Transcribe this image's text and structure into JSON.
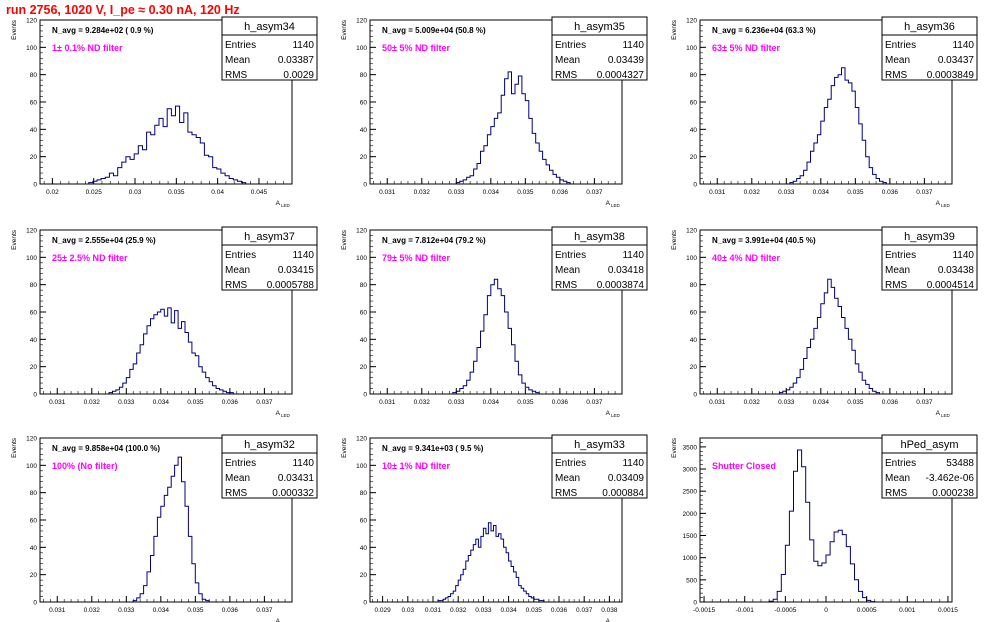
{
  "page_title": "run 2756,  1020 V, I_pe ≈ 0.30 nA, 120 Hz",
  "colors": {
    "title": "#ff0000",
    "histogram": "#000080",
    "note": "#ff00ff",
    "axes": "#000000"
  },
  "chart_data": [
    {
      "type": "histogram",
      "name": "h_asym34",
      "header": "N_avg = 9.284e+02 ( 0.9 %)",
      "note": "1± 0.1% ND filter",
      "stats": [
        [
          "Entries",
          "1140"
        ],
        [
          "Mean",
          "0.03387"
        ],
        [
          "RMS",
          "0.0029"
        ]
      ],
      "ylabel": "Events",
      "xlabel": "A",
      "xlabel_sub": "LED",
      "xlim": [
        0.0185,
        0.049
      ],
      "ylim": [
        0,
        120
      ],
      "xticks": [
        0.02,
        0.025,
        0.03,
        0.035,
        0.04,
        0.045
      ],
      "xtick_labels": [
        "0.02",
        "0.025",
        "0.03",
        "0.035",
        "0.04",
        "0.045"
      ],
      "yticks": [
        0,
        20,
        40,
        60,
        80,
        100,
        120
      ],
      "bins": {
        "start": 0.0244,
        "width": 0.0005,
        "counts": [
          1,
          2,
          3,
          4,
          5,
          8,
          6,
          12,
          16,
          20,
          18,
          22,
          28,
          25,
          38,
          36,
          43,
          48,
          42,
          55,
          50,
          57,
          45,
          52,
          38,
          36,
          34,
          30,
          21,
          20,
          12,
          11,
          8,
          6,
          4,
          3,
          2,
          1
        ]
      }
    },
    {
      "type": "histogram",
      "name": "h_asym35",
      "header": "N_avg = 5.009e+04 (50.8 %)",
      "note": "50± 5% ND filter",
      "stats": [
        [
          "Entries",
          "1140"
        ],
        [
          "Mean",
          "0.03439"
        ],
        [
          "RMS",
          "0.0004327"
        ]
      ],
      "ylabel": "Events",
      "xlabel": "A",
      "xlabel_sub": "LED",
      "xlim": [
        0.0305,
        0.0378
      ],
      "ylim": [
        0,
        120
      ],
      "xticks": [
        0.031,
        0.032,
        0.033,
        0.034,
        0.035,
        0.036,
        0.037
      ],
      "xtick_labels": [
        "0.031",
        "0.032",
        "0.033",
        "0.034",
        "0.035",
        "0.036",
        "0.037"
      ],
      "yticks": [
        0,
        20,
        40,
        60,
        80,
        100,
        120
      ],
      "bins": {
        "start": 0.033,
        "width": 0.0001,
        "counts": [
          1,
          2,
          3,
          5,
          6,
          11,
          15,
          24,
          28,
          36,
          42,
          48,
          52,
          65,
          77,
          82,
          66,
          73,
          79,
          66,
          61,
          48,
          37,
          30,
          24,
          18,
          14,
          10,
          7,
          5,
          3,
          2,
          1
        ]
      }
    },
    {
      "type": "histogram",
      "name": "h_asym36",
      "header": "N_avg = 6.236e+04 (63.3 %)",
      "note": "63± 5% ND filter",
      "stats": [
        [
          "Entries",
          "1140"
        ],
        [
          "Mean",
          "0.03437"
        ],
        [
          "RMS",
          "0.0003849"
        ]
      ],
      "ylabel": "Events",
      "xlabel": "A",
      "xlabel_sub": "LED",
      "xlim": [
        0.0305,
        0.0378
      ],
      "ylim": [
        0,
        120
      ],
      "xticks": [
        0.031,
        0.032,
        0.033,
        0.034,
        0.035,
        0.036,
        0.037
      ],
      "xtick_labels": [
        "0.031",
        "0.032",
        "0.033",
        "0.034",
        "0.035",
        "0.036",
        "0.037"
      ],
      "yticks": [
        0,
        20,
        40,
        60,
        80,
        100,
        120
      ],
      "bins": {
        "start": 0.0331,
        "width": 0.0001,
        "counts": [
          1,
          2,
          4,
          6,
          10,
          16,
          24,
          30,
          36,
          46,
          56,
          62,
          72,
          78,
          80,
          85,
          76,
          74,
          68,
          56,
          44,
          32,
          20,
          12,
          7,
          4,
          2,
          1
        ]
      }
    },
    {
      "type": "histogram",
      "name": "h_asym37",
      "header": "N_avg = 2.555e+04 (25.9 %)",
      "note": "25± 2.5% ND filter",
      "stats": [
        [
          "Entries",
          "1140"
        ],
        [
          "Mean",
          "0.03415"
        ],
        [
          "RMS",
          "0.0005788"
        ]
      ],
      "ylabel": "Events",
      "xlabel": "A",
      "xlabel_sub": "LED",
      "xlim": [
        0.0305,
        0.0378
      ],
      "ylim": [
        0,
        120
      ],
      "xticks": [
        0.031,
        0.032,
        0.033,
        0.034,
        0.035,
        0.036,
        0.037
      ],
      "xtick_labels": [
        "0.031",
        "0.032",
        "0.033",
        "0.034",
        "0.035",
        "0.036",
        "0.037"
      ],
      "yticks": [
        0,
        20,
        40,
        60,
        80,
        100,
        120
      ],
      "bins": {
        "start": 0.0325,
        "width": 0.0001,
        "counts": [
          1,
          2,
          3,
          5,
          8,
          12,
          18,
          22,
          30,
          36,
          44,
          50,
          55,
          58,
          60,
          62,
          57,
          63,
          52,
          61,
          48,
          53,
          45,
          38,
          30,
          28,
          20,
          16,
          12,
          9,
          6,
          4,
          3,
          2,
          1,
          1
        ]
      }
    },
    {
      "type": "histogram",
      "name": "h_asym38",
      "header": "N_avg = 7.812e+04 (79.2 %)",
      "note": "79± 5% ND filter",
      "stats": [
        [
          "Entries",
          "1140"
        ],
        [
          "Mean",
          "0.03418"
        ],
        [
          "RMS",
          "0.0003874"
        ]
      ],
      "ylabel": "Events",
      "xlabel": "A",
      "xlabel_sub": "LED",
      "xlim": [
        0.0305,
        0.0378
      ],
      "ylim": [
        0,
        120
      ],
      "xticks": [
        0.031,
        0.032,
        0.033,
        0.034,
        0.035,
        0.036,
        0.037
      ],
      "xtick_labels": [
        "0.031",
        "0.032",
        "0.033",
        "0.034",
        "0.035",
        "0.036",
        "0.037"
      ],
      "yticks": [
        0,
        20,
        40,
        60,
        80,
        100,
        120
      ],
      "bins": {
        "start": 0.0329,
        "width": 0.0001,
        "counts": [
          1,
          2,
          4,
          6,
          10,
          16,
          24,
          34,
          46,
          58,
          72,
          80,
          84,
          77,
          72,
          60,
          48,
          36,
          24,
          14,
          8,
          5,
          3,
          2,
          1
        ]
      }
    },
    {
      "type": "histogram",
      "name": "h_asym39",
      "header": "N_avg = 3.991e+04 (40.5 %)",
      "note": "40± 4% ND filter",
      "stats": [
        [
          "Entries",
          "1140"
        ],
        [
          "Mean",
          "0.03438"
        ],
        [
          "RMS",
          "0.0004514"
        ]
      ],
      "ylabel": "Events",
      "xlabel": "A",
      "xlabel_sub": "LED",
      "xlim": [
        0.0305,
        0.0378
      ],
      "ylim": [
        0,
        120
      ],
      "xticks": [
        0.031,
        0.032,
        0.033,
        0.034,
        0.035,
        0.036,
        0.037
      ],
      "xtick_labels": [
        "0.031",
        "0.032",
        "0.033",
        "0.034",
        "0.035",
        "0.036",
        "0.037"
      ],
      "yticks": [
        0,
        20,
        40,
        60,
        80,
        100,
        120
      ],
      "bins": {
        "start": 0.0328,
        "width": 0.0001,
        "counts": [
          1,
          2,
          3,
          5,
          8,
          12,
          18,
          26,
          34,
          40,
          48,
          56,
          66,
          74,
          84,
          78,
          70,
          64,
          56,
          48,
          40,
          32,
          22,
          16,
          10,
          7,
          4,
          2,
          1
        ]
      }
    },
    {
      "type": "histogram",
      "name": "h_asym32",
      "header": "N_avg = 9.858e+04 (100.0 %)",
      "note": "100% (No filter)",
      "stats": [
        [
          "Entries",
          "1140"
        ],
        [
          "Mean",
          "0.03431"
        ],
        [
          "RMS",
          "0.000332"
        ]
      ],
      "ylabel": "Events",
      "xlabel": "A",
      "xlabel_sub": "LED",
      "xlim": [
        0.0305,
        0.0378
      ],
      "ylim": [
        0,
        120
      ],
      "xticks": [
        0.031,
        0.032,
        0.033,
        0.034,
        0.035,
        0.036,
        0.037
      ],
      "xtick_labels": [
        "0.031",
        "0.032",
        "0.033",
        "0.034",
        "0.035",
        "0.036",
        "0.037"
      ],
      "yticks": [
        0,
        20,
        40,
        60,
        80,
        100,
        120
      ],
      "bins": {
        "start": 0.0332,
        "width": 0.0001,
        "counts": [
          1,
          3,
          6,
          12,
          22,
          34,
          48,
          62,
          70,
          78,
          84,
          92,
          100,
          106,
          88,
          70,
          48,
          28,
          14,
          6,
          2,
          1
        ]
      }
    },
    {
      "type": "histogram",
      "name": "h_asym33",
      "header": "N_avg = 9.341e+03 ( 9.5 %)",
      "note": "10± 1% ND filter",
      "stats": [
        [
          "Entries",
          "1140"
        ],
        [
          "Mean",
          "0.03409"
        ],
        [
          "RMS",
          "0.000884"
        ]
      ],
      "ylabel": "Events",
      "xlabel": "A",
      "xlabel_sub": "LED",
      "xlim": [
        0.0285,
        0.0385
      ],
      "ylim": [
        0,
        120
      ],
      "xticks": [
        0.029,
        0.03,
        0.031,
        0.032,
        0.033,
        0.034,
        0.035,
        0.036,
        0.037,
        0.038
      ],
      "xtick_labels": [
        "0.029",
        "0.03",
        "0.031",
        "0.032",
        "0.033",
        "0.034",
        "0.035",
        "0.036",
        "0.037",
        "0.038"
      ],
      "yticks": [
        0,
        20,
        40,
        60,
        80,
        100,
        120
      ],
      "bins": {
        "start": 0.0312,
        "width": 0.0001,
        "counts": [
          1,
          1,
          2,
          3,
          4,
          6,
          8,
          12,
          16,
          20,
          24,
          30,
          34,
          38,
          42,
          46,
          40,
          48,
          54,
          50,
          58,
          52,
          56,
          48,
          50,
          46,
          40,
          36,
          30,
          26,
          22,
          18,
          12,
          10,
          8,
          6,
          4,
          3,
          2,
          2,
          1,
          1
        ]
      }
    },
    {
      "type": "histogram",
      "name": "hPed_asym",
      "header": "",
      "note": "Shutter Closed",
      "stats": [
        [
          "Entries",
          "53488"
        ],
        [
          "Mean",
          "-3.462e-06"
        ],
        [
          "RMS",
          "0.000238"
        ]
      ],
      "ylabel": "Events",
      "xlabel": "",
      "xlabel_sub": "",
      "xlim": [
        -0.00155,
        0.00155
      ],
      "ylim": [
        0,
        3700
      ],
      "xticks": [
        -0.0015,
        -0.001,
        -0.0005,
        0,
        0.0005,
        0.001,
        0.0015
      ],
      "xtick_labels": [
        "-0.0015",
        "-0.001",
        "-0.0005",
        "0",
        "0.0005",
        "0.001",
        "0.0015"
      ],
      "yticks": [
        0,
        500,
        1000,
        1500,
        2000,
        2500,
        3000,
        3500
      ],
      "bins": {
        "start": -0.0007,
        "width": 5e-05,
        "counts": [
          15,
          60,
          240,
          620,
          1280,
          2050,
          2950,
          3430,
          3050,
          2250,
          1400,
          920,
          820,
          880,
          1060,
          1360,
          1580,
          1620,
          1520,
          1250,
          860,
          500,
          240,
          100,
          35,
          10
        ]
      }
    }
  ]
}
